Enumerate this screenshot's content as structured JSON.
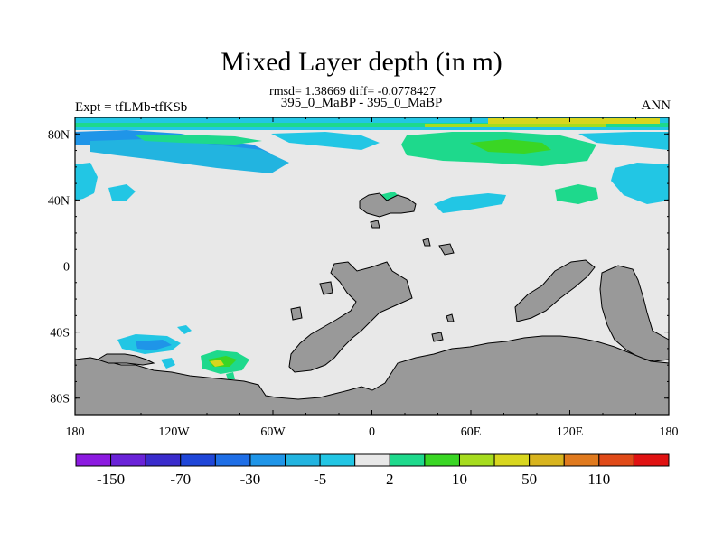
{
  "figure": {
    "title": "Mixed Layer depth (in m)",
    "subtitle": "rmsd= 1.38669 diff= -0.0778427",
    "case": "395_0_MaBP - 395_0_MaBP",
    "left_label": "Expt = tfLMb-tfKSb",
    "right_label": "ANN"
  },
  "map": {
    "projection": "cylindrical equidistant",
    "lon_range": [
      -180,
      180
    ],
    "lat_range": [
      -90,
      90
    ],
    "lon_ticks": [
      {
        "value": -180,
        "label": "180"
      },
      {
        "value": -120,
        "label": "120W"
      },
      {
        "value": -60,
        "label": "60W"
      },
      {
        "value": 0,
        "label": "0"
      },
      {
        "value": 60,
        "label": "60E"
      },
      {
        "value": 120,
        "label": "120E"
      },
      {
        "value": 180,
        "label": "180"
      }
    ],
    "lat_ticks": [
      {
        "value": 80,
        "label": "80N"
      },
      {
        "value": 40,
        "label": "40N"
      },
      {
        "value": 0,
        "label": "0"
      },
      {
        "value": -40,
        "label": "40S"
      },
      {
        "value": -80,
        "label": "80S"
      }
    ],
    "background_color": "#e8e8e8",
    "land_color": "#999999"
  },
  "colorbar": {
    "colors": [
      "#8c1ae0",
      "#6a23d8",
      "#3a2ccc",
      "#1f46d8",
      "#1e6ee6",
      "#1f95e8",
      "#22b4e0",
      "#22c6e4",
      "#e8e8e8",
      "#1ed98c",
      "#3ad624",
      "#a6dc1e",
      "#d8d61e",
      "#d8b41e",
      "#e07a1e",
      "#e04a18",
      "#e01212"
    ],
    "labels": [
      {
        "after_box": 1,
        "text": "-150"
      },
      {
        "after_box": 3,
        "text": "-70"
      },
      {
        "after_box": 5,
        "text": "-30"
      },
      {
        "after_box": 7,
        "text": "-5"
      },
      {
        "after_box": 9,
        "text": "2"
      },
      {
        "after_box": 11,
        "text": "10"
      },
      {
        "after_box": 13,
        "text": "50"
      },
      {
        "after_box": 15,
        "text": "110"
      }
    ]
  }
}
